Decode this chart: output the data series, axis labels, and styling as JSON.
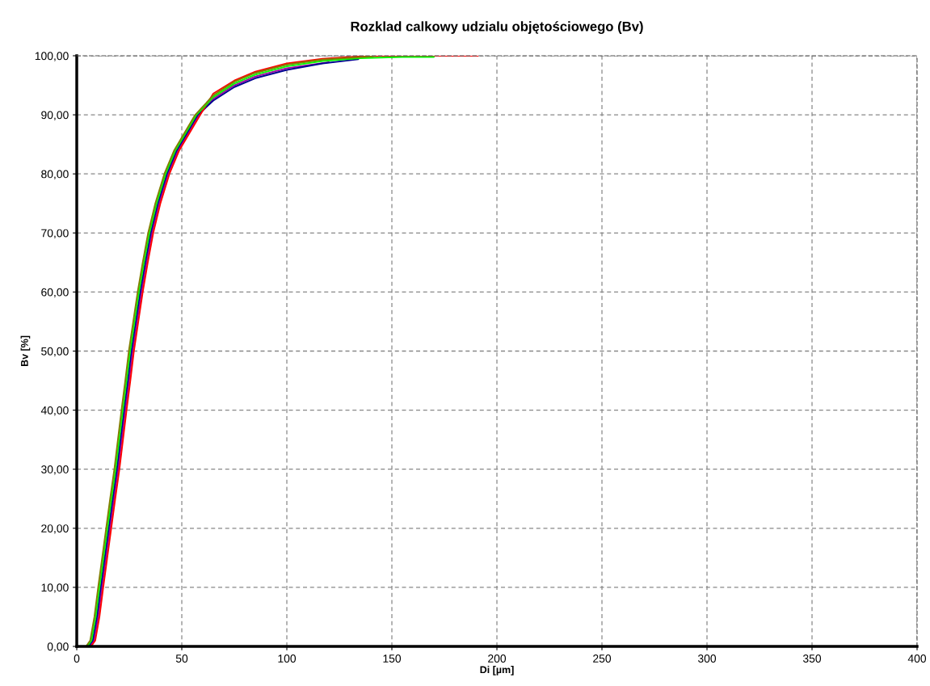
{
  "chart_data": {
    "type": "line",
    "title": "Rozklad calkowy udzialu objętościowego (Bv)",
    "xlabel": "Di [µm]",
    "ylabel": "Bv [%]",
    "xlim": [
      0,
      400
    ],
    "xticks": [
      0,
      50,
      100,
      150,
      200,
      250,
      300,
      350,
      400
    ],
    "ylim": [
      0,
      100
    ],
    "yticks": [
      {
        "value": 0,
        "label": "0,00"
      },
      {
        "value": 10,
        "label": "10,00"
      },
      {
        "value": 20,
        "label": "20,00"
      },
      {
        "value": 30,
        "label": "30,00"
      },
      {
        "value": 40,
        "label": "40,00"
      },
      {
        "value": 50,
        "label": "50,00"
      },
      {
        "value": 60,
        "label": "60,00"
      },
      {
        "value": 70,
        "label": "70,00"
      },
      {
        "value": 80,
        "label": "80,00"
      },
      {
        "value": 90,
        "label": "90,00"
      },
      {
        "value": 100,
        "label": "100,00"
      }
    ],
    "grid": true,
    "legend": false,
    "marker": "none",
    "line_style": "solid",
    "series": [
      {
        "color": "#a000a0",
        "x": [
          6.2,
          8.2,
          10.2,
          12,
          13.9,
          15.8,
          17.7,
          19.7,
          21.4,
          23.1,
          24.9,
          26.6,
          28.7,
          30.8,
          33.2,
          35.8,
          39.2,
          43.5,
          48.2,
          53.2,
          58.2,
          65,
          75,
          85,
          100,
          120
        ],
        "values": [
          0,
          1,
          5,
          10,
          15,
          20,
          25,
          30,
          35,
          40,
          45,
          50,
          55,
          60,
          65,
          70,
          75,
          80,
          84,
          87,
          90,
          92.7,
          95,
          96.5,
          97.9,
          98.9
        ]
      },
      {
        "color": "#000090",
        "x": [
          5.6,
          7.6,
          9.6,
          11.4,
          13.3,
          15.2,
          17.1,
          19.1,
          20.8,
          22.5,
          24.3,
          26,
          28.1,
          30.2,
          32.6,
          35.2,
          38.6,
          42.9,
          47.6,
          52.6,
          57.6,
          65,
          75,
          85,
          100,
          117,
          134
        ],
        "values": [
          0,
          1,
          5,
          10,
          15,
          20,
          25,
          30,
          35,
          40,
          45,
          50,
          55,
          60,
          65,
          70,
          75,
          80,
          84,
          87,
          90,
          92.4,
          94.7,
          96.2,
          97.6,
          98.7,
          99.4
        ]
      },
      {
        "color": "#ff0000",
        "x": [
          6.8,
          8.8,
          10.8,
          12.6,
          14.5,
          16.4,
          18.3,
          20.3,
          22,
          23.7,
          25.5,
          27.2,
          29.3,
          31.4,
          33.8,
          36.4,
          39.8,
          44.1,
          48.8,
          53.8,
          58.8,
          65,
          75,
          85,
          100,
          117,
          135,
          155,
          175,
          191
        ],
        "values": [
          0,
          1,
          5,
          10,
          15,
          20,
          25,
          30,
          35,
          40,
          45,
          50,
          55,
          60,
          65,
          70,
          75,
          80,
          84,
          87,
          90,
          93.6,
          95.8,
          97.3,
          98.7,
          99.5,
          99.9,
          100,
          100,
          100
        ]
      },
      {
        "color": "#00ff00",
        "x": [
          5,
          7,
          9,
          10.8,
          12.7,
          14.6,
          16.5,
          18.5,
          20.2,
          21.9,
          23.7,
          25.4,
          27.5,
          29.6,
          32,
          34.6,
          38,
          42.3,
          47,
          52,
          57,
          65,
          75,
          85,
          100,
          117,
          135,
          155,
          170
        ],
        "values": [
          0,
          1,
          5,
          10,
          15,
          20,
          25,
          30,
          35,
          40,
          45,
          50,
          55,
          60,
          65,
          70,
          75,
          80,
          84,
          87,
          90,
          93,
          95.3,
          96.8,
          98.2,
          99.1,
          99.6,
          99.8,
          99.8
        ]
      },
      {
        "color": "#808000",
        "x": [
          4.4,
          6.4,
          8.4,
          10.2,
          12.1,
          14,
          15.9,
          17.9,
          19.6,
          21.3,
          23.1,
          24.8,
          26.9,
          29,
          31.4,
          34,
          37.4,
          41.7,
          46.4,
          51.4,
          56.4,
          65,
          75,
          85,
          100,
          117,
          141
        ],
        "values": [
          0,
          1,
          5,
          10,
          15,
          20,
          25,
          30,
          35,
          40,
          45,
          50,
          55,
          60,
          65,
          70,
          75,
          80,
          84,
          87,
          90,
          93.3,
          95.6,
          97.1,
          98.5,
          99.35,
          99.9
        ]
      }
    ]
  }
}
